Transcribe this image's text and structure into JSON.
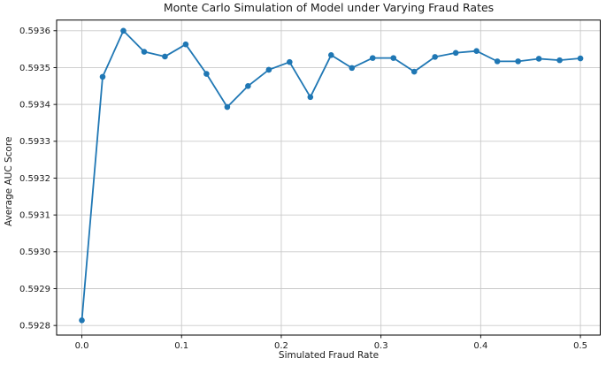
{
  "chart_data": {
    "type": "line",
    "title": "Monte Carlo Simulation of Model under Varying Fraud Rates",
    "xlabel": "Simulated Fraud Rate",
    "ylabel": "Average AUC Score",
    "x": [
      0,
      0.020833,
      0.041667,
      0.0625,
      0.083333,
      0.104167,
      0.125,
      0.145833,
      0.166667,
      0.1875,
      0.208333,
      0.229167,
      0.25,
      0.270833,
      0.291667,
      0.3125,
      0.333333,
      0.354167,
      0.375,
      0.395833,
      0.416667,
      0.4375,
      0.458333,
      0.479167,
      0.5
    ],
    "y": [
      0.592814,
      0.593475,
      0.5936,
      0.593543,
      0.59353,
      0.593563,
      0.593483,
      0.593393,
      0.59345,
      0.593494,
      0.593515,
      0.59342,
      0.593534,
      0.593499,
      0.593526,
      0.593526,
      0.593489,
      0.593529,
      0.59354,
      0.593545,
      0.593517,
      0.593517,
      0.593524,
      0.59352,
      0.593525
    ],
    "xticks": {
      "values": [
        0.0,
        0.1,
        0.2,
        0.3,
        0.4,
        0.5
      ],
      "labels": [
        "0.0",
        "0.1",
        "0.2",
        "0.3",
        "0.4",
        "0.5"
      ]
    },
    "yticks": {
      "values": [
        0.5928,
        0.5929,
        0.593,
        0.5931,
        0.5932,
        0.5933,
        0.5934,
        0.5935,
        0.5936
      ],
      "labels": [
        "0.5928",
        "0.5929",
        "0.5930",
        "0.5931",
        "0.5932",
        "0.5933",
        "0.5934",
        "0.5935",
        "0.5936"
      ]
    },
    "xlim": [
      -0.0253,
      0.5199
    ],
    "ylim": [
      0.592774,
      0.593629
    ],
    "grid": true,
    "legend_position": "none",
    "line_color": "#1f77b4",
    "marker": "o",
    "grid_color": "#c9c9c9",
    "spine_color": "#000000",
    "text_color": "#1a1a1a",
    "background_color": "#ffffff"
  }
}
